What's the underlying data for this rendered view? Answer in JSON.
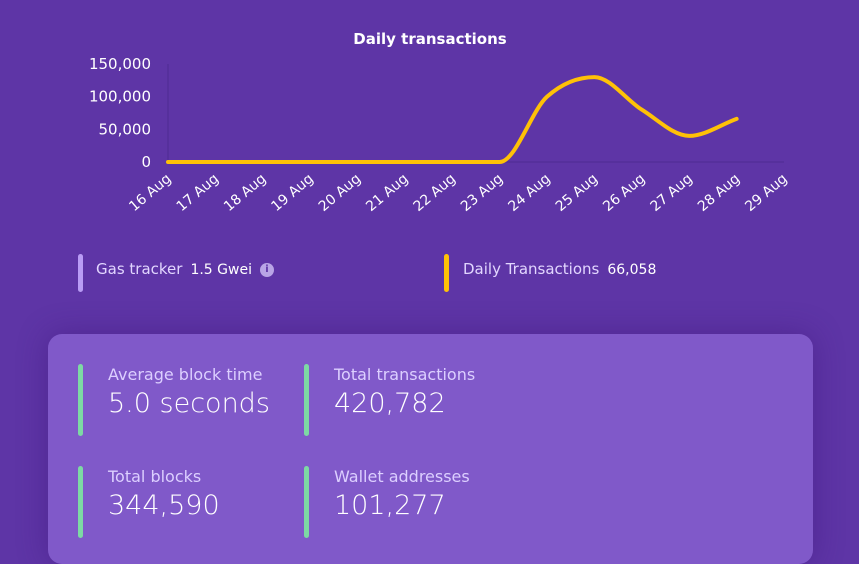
{
  "chart_data": {
    "type": "line",
    "title": "Daily transactions",
    "categories": [
      "16 Aug",
      "17 Aug",
      "18 Aug",
      "19 Aug",
      "20 Aug",
      "21 Aug",
      "22 Aug",
      "23 Aug",
      "24 Aug",
      "25 Aug",
      "26 Aug",
      "27 Aug",
      "28 Aug",
      "29 Aug"
    ],
    "values": [
      0,
      0,
      0,
      0,
      0,
      0,
      0,
      0,
      100000,
      130000,
      80000,
      40000,
      66058,
      null
    ],
    "yticks": [
      "0",
      "50,000",
      "100,000",
      "150,000"
    ],
    "ylim": [
      0,
      150000
    ],
    "grid": false,
    "line_color": "#ffc107"
  },
  "stats": {
    "gas": {
      "label": "Gas tracker",
      "value": "1.5 Gwei",
      "icon": "info-icon",
      "color": "#b99cf5"
    },
    "daily": {
      "label": "Daily Transactions",
      "value": "66,058",
      "color": "#ffc107"
    }
  },
  "card": {
    "items": [
      {
        "label": "Average block time",
        "value": "5.0 seconds"
      },
      {
        "label": "Total transactions",
        "value": "420,782"
      },
      {
        "label": "Total blocks",
        "value": "344,590"
      },
      {
        "label": "Wallet addresses",
        "value": "101,277"
      }
    ],
    "accent": "#7dd9a4"
  }
}
